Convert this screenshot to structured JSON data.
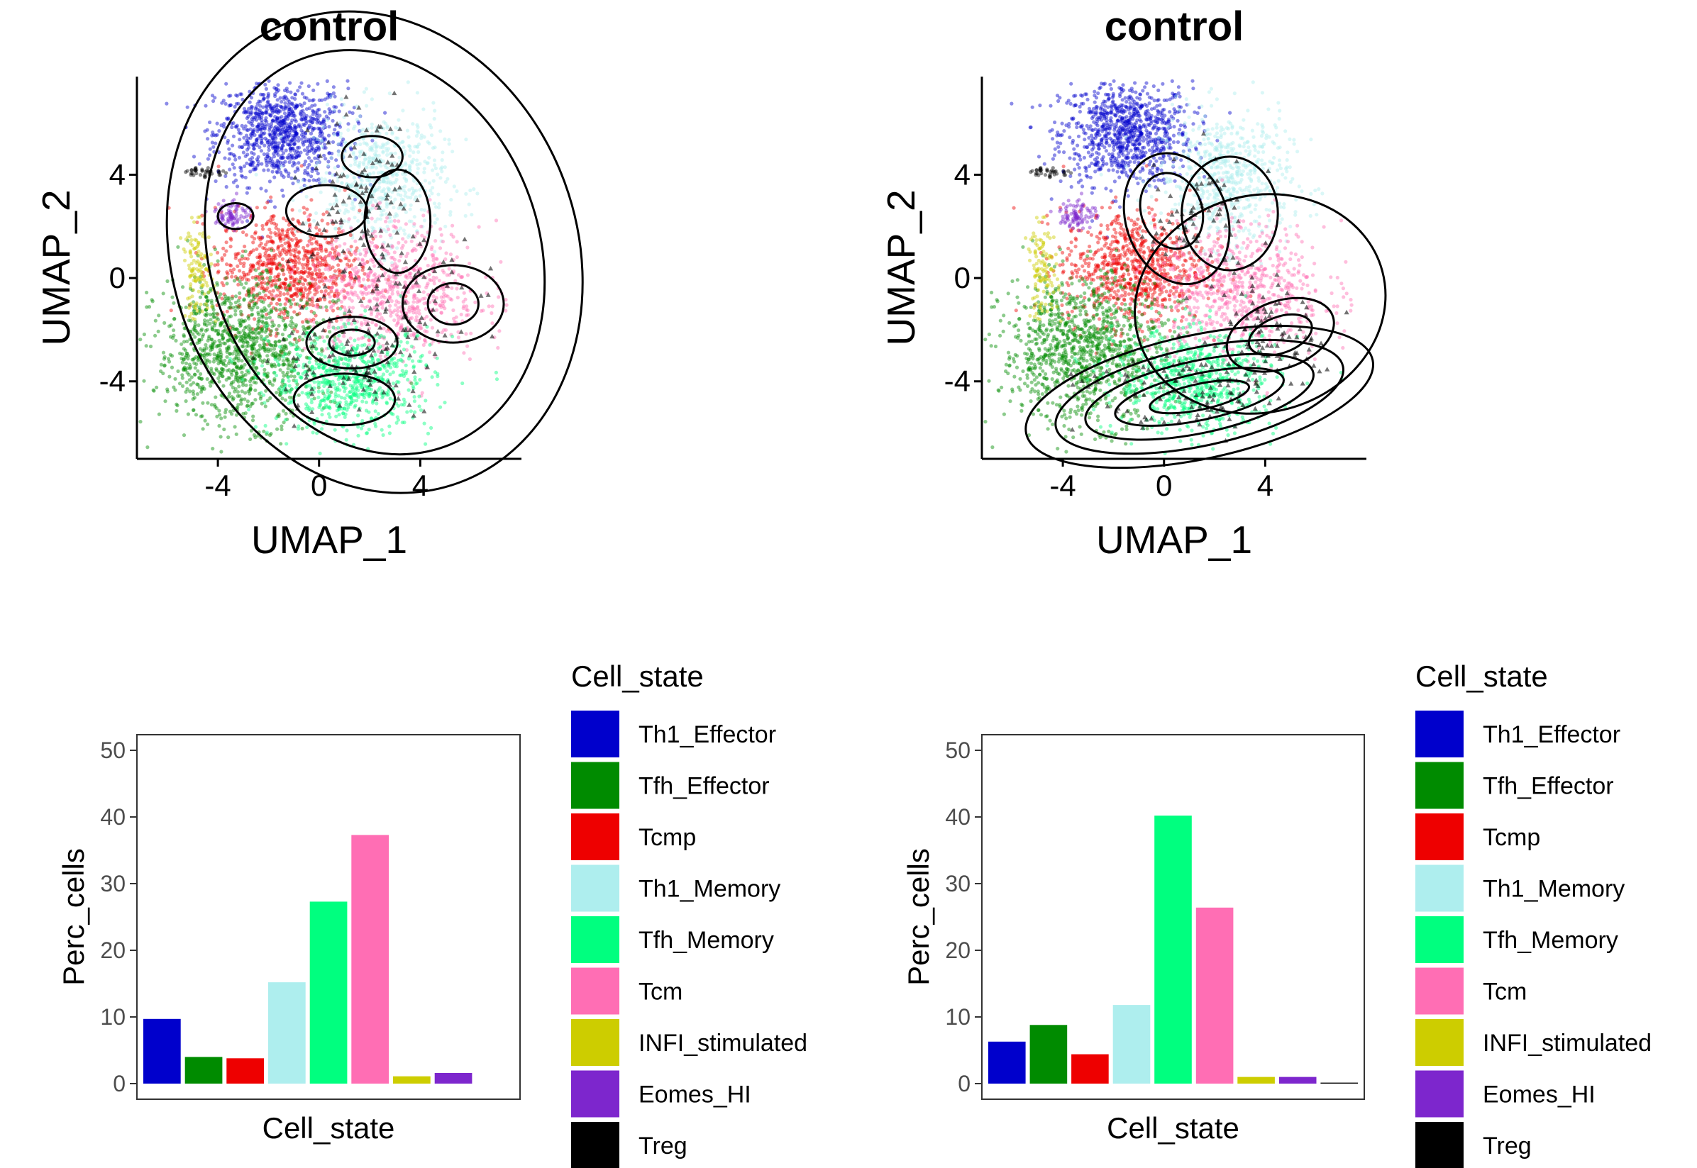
{
  "colors": {
    "Th1_Effector": "#0000CC",
    "Tfh_Effector": "#008B00",
    "Tcmp": "#EE0000",
    "Th1_Memory": "#AEEEEE",
    "Tfh_Memory": "#00FF7F",
    "Tcm": "#FF6EB4",
    "INFI_stimulated": "#CDCD00",
    "Eomes_HI": "#7D26CD",
    "Treg": "#000000"
  },
  "chart_data": [
    {
      "type": "scatter",
      "title": "control",
      "xlabel": "UMAP_1",
      "ylabel": "UMAP_2",
      "xlim": [
        -7.2,
        8.0
      ],
      "ylim": [
        -7.0,
        7.8
      ],
      "xticks": [
        "-4",
        "0",
        "4"
      ],
      "yticks": [
        "-4",
        "0",
        "4"
      ],
      "overlay": "density contours of sample cells",
      "grid": false
    },
    {
      "type": "scatter",
      "title": "control",
      "xlabel": "UMAP_1",
      "ylabel": "UMAP_2",
      "xlim": [
        -7.2,
        8.0
      ],
      "ylim": [
        -7.0,
        7.8
      ],
      "xticks": [
        "-4",
        "0",
        "4"
      ],
      "yticks": [
        "-4",
        "0",
        "4"
      ],
      "overlay": "density contours of sample cells",
      "grid": false
    },
    {
      "type": "bar",
      "xlabel": "Cell_state",
      "ylabel": "Perc_cells",
      "ylim": [
        0,
        50
      ],
      "yticks": [
        "0",
        "10",
        "20",
        "30",
        "40",
        "50"
      ],
      "legend_title": "Cell_state",
      "legend_position": "right",
      "categories": [
        "Th1_Effector",
        "Tfh_Effector",
        "Tcmp",
        "Th1_Memory",
        "Tfh_Memory",
        "Tcm",
        "INFI_stimulated",
        "Eomes_HI",
        "Treg"
      ],
      "values": [
        9.7,
        4.0,
        3.8,
        15.2,
        27.3,
        37.3,
        1.1,
        1.6,
        0
      ]
    },
    {
      "type": "bar",
      "xlabel": "Cell_state",
      "ylabel": "Perc_cells",
      "ylim": [
        0,
        50
      ],
      "yticks": [
        "0",
        "10",
        "20",
        "30",
        "40",
        "50"
      ],
      "legend_title": "Cell_state",
      "legend_position": "right",
      "categories": [
        "Th1_Effector",
        "Tfh_Effector",
        "Tcmp",
        "Th1_Memory",
        "Tfh_Memory",
        "Tcm",
        "INFI_stimulated",
        "Eomes_HI",
        "Treg"
      ],
      "values": [
        6.3,
        8.8,
        4.4,
        11.8,
        40.2,
        26.4,
        1.0,
        1.0,
        0.15
      ]
    }
  ]
}
